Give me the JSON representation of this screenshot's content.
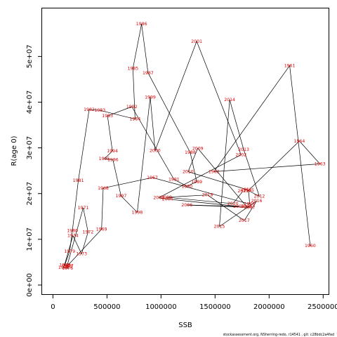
{
  "chart_data": {
    "type": "line",
    "title": "",
    "xlabel": "SSB",
    "ylabel": "R(age 0)",
    "xlim": [
      -100000,
      2550000
    ],
    "ylim": [
      -2000000,
      60500000
    ],
    "x_ticks": [
      0,
      500000,
      1000000,
      1500000,
      2000000,
      2500000
    ],
    "x_tick_labels": [
      "0",
      "500000",
      "1000000",
      "1500000",
      "2000000",
      "2500000"
    ],
    "y_ticks": [
      0,
      10000000,
      20000000,
      30000000,
      40000000,
      50000000
    ],
    "y_tick_labels": [
      "0e+00",
      "1e+07",
      "2e+07",
      "3e+07",
      "4e+07",
      "5e+07"
    ],
    "grid": false,
    "legend": "none",
    "line_color": "#000000",
    "label_color": "#e00000",
    "footer": "stockassessment.org, NSherring-redo, r14541 , git: c28bdc2a4fad",
    "points": [
      {
        "year": "1960",
        "ssb": 2380000,
        "rec": 8600000
      },
      {
        "year": "1961",
        "ssb": 2190000,
        "rec": 48000000
      },
      {
        "year": "1962",
        "ssb": 1490000,
        "rec": 24800000
      },
      {
        "year": "1963",
        "ssb": 2470000,
        "rec": 26500000
      },
      {
        "year": "1964",
        "ssb": 2280000,
        "rec": 31500000
      },
      {
        "year": "1965",
        "ssb": 1810000,
        "rec": 20700000
      },
      {
        "year": "1966",
        "ssb": 1820000,
        "rec": 17700000
      },
      {
        "year": "1967",
        "ssb": 920000,
        "rec": 23500000
      },
      {
        "year": "1968",
        "ssb": 465000,
        "rec": 21200000
      },
      {
        "year": "1969",
        "ssb": 450000,
        "rec": 12200000
      },
      {
        "year": "1970",
        "ssb": 130000,
        "rec": 4100000
      },
      {
        "year": "1971",
        "ssb": 280000,
        "rec": 16900000
      },
      {
        "year": "1972",
        "ssb": 325000,
        "rec": 11600000
      },
      {
        "year": "1973",
        "ssb": 265000,
        "rec": 6800000
      },
      {
        "year": "1974",
        "ssb": 185000,
        "rec": 10800000
      },
      {
        "year": "1975",
        "ssb": 100000,
        "rec": 3800000
      },
      {
        "year": "1976",
        "ssb": 135000,
        "rec": 3700000
      },
      {
        "year": "1977",
        "ssb": 140000,
        "rec": 4200000
      },
      {
        "year": "1978",
        "ssb": 110000,
        "rec": 4400000
      },
      {
        "year": "1979",
        "ssb": 155000,
        "rec": 7400000
      },
      {
        "year": "1980",
        "ssb": 180000,
        "rec": 11900000
      },
      {
        "year": "1981",
        "ssb": 235000,
        "rec": 22900000
      },
      {
        "year": "1982",
        "ssb": 335000,
        "rec": 38400000
      },
      {
        "year": "1983",
        "ssb": 435000,
        "rec": 38200000
      },
      {
        "year": "1984",
        "ssb": 760000,
        "rec": 36300000
      },
      {
        "year": "1985",
        "ssb": 740000,
        "rec": 47400000
      },
      {
        "year": "1986",
        "ssb": 820000,
        "rec": 57100000
      },
      {
        "year": "1987",
        "ssb": 880000,
        "rec": 46400000
      },
      {
        "year": "1988",
        "ssb": 1270000,
        "rec": 29000000
      },
      {
        "year": "1989",
        "ssb": 1330000,
        "rec": 22600000
      },
      {
        "year": "1990",
        "ssb": 1240000,
        "rec": 21600000
      },
      {
        "year": "1991",
        "ssb": 1120000,
        "rec": 23100000
      },
      {
        "year": "1992",
        "ssb": 730000,
        "rec": 39000000
      },
      {
        "year": "1993",
        "ssb": 505000,
        "rec": 37000000
      },
      {
        "year": "1994",
        "ssb": 550000,
        "rec": 29300000
      },
      {
        "year": "1995",
        "ssb": 475000,
        "rec": 27600000
      },
      {
        "year": "1996",
        "ssb": 555000,
        "rec": 27400000
      },
      {
        "year": "1997",
        "ssb": 630000,
        "rec": 19500000
      },
      {
        "year": "1998",
        "ssb": 780000,
        "rec": 15900000
      },
      {
        "year": "1999",
        "ssb": 900000,
        "rec": 41100000
      },
      {
        "year": "2000",
        "ssb": 945000,
        "rec": 29400000
      },
      {
        "year": "2001",
        "ssb": 1330000,
        "rec": 53300000
      },
      {
        "year": "2002",
        "ssb": 1740000,
        "rec": 28500000
      },
      {
        "year": "2003",
        "ssb": 980000,
        "rec": 19100000
      },
      {
        "year": "2004",
        "ssb": 1060000,
        "rec": 18800000
      },
      {
        "year": "2005",
        "ssb": 1720000,
        "rec": 17200000
      },
      {
        "year": "2006",
        "ssb": 1240000,
        "rec": 17500000
      },
      {
        "year": "2007",
        "ssb": 1820000,
        "rec": 17000000
      },
      {
        "year": "2008",
        "ssb": 1790000,
        "rec": 17200000
      },
      {
        "year": "2009",
        "ssb": 1340000,
        "rec": 29900000
      },
      {
        "year": "2010",
        "ssb": 1250000,
        "rec": 24800000
      },
      {
        "year": "2011",
        "ssb": 1790000,
        "rec": 20900000
      },
      {
        "year": "2012",
        "ssb": 1910000,
        "rec": 19400000
      },
      {
        "year": "2013",
        "ssb": 1765000,
        "rec": 29600000
      },
      {
        "year": "2014",
        "ssb": 1635000,
        "rec": 40500000
      },
      {
        "year": "2015",
        "ssb": 1540000,
        "rec": 12800000
      },
      {
        "year": "2016",
        "ssb": 1885000,
        "rec": 18400000
      },
      {
        "year": "2017",
        "ssb": 1770000,
        "rec": 14100000
      },
      {
        "year": "2018",
        "ssb": 1430000,
        "rec": 19700000
      },
      {
        "year": "2019",
        "ssb": 1050000,
        "rec": 19200000
      },
      {
        "year": "2020",
        "ssb": 1665000,
        "rec": 17800000
      },
      {
        "year": "2021",
        "ssb": 1760000,
        "rec": 20600000
      }
    ]
  }
}
